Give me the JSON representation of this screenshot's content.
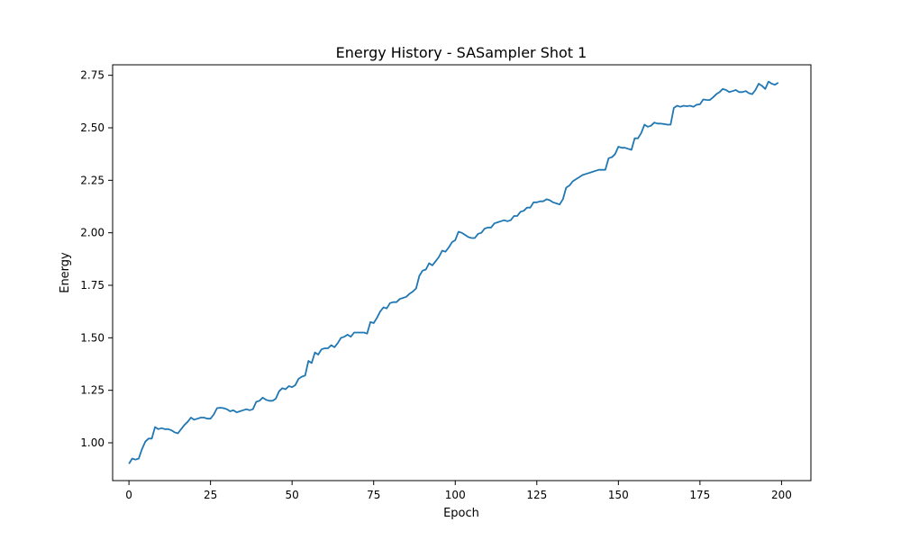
{
  "chart_data": {
    "type": "line",
    "title": "Energy History - SASampler Shot 1",
    "xlabel": "Epoch",
    "ylabel": "Energy",
    "xlim": [
      -5,
      209
    ],
    "ylim": [
      0.82,
      2.8
    ],
    "x_ticks": [
      0,
      25,
      50,
      75,
      100,
      125,
      150,
      175,
      200
    ],
    "y_ticks": [
      1.0,
      1.25,
      1.5,
      1.75,
      2.0,
      2.25,
      2.5,
      2.75
    ],
    "x_tick_labels": [
      "0",
      "25",
      "50",
      "75",
      "100",
      "125",
      "150",
      "175",
      "200"
    ],
    "y_tick_labels": [
      "1.00",
      "1.25",
      "1.50",
      "1.75",
      "2.00",
      "2.25",
      "2.50",
      "2.75"
    ],
    "grid": false,
    "line_color": "#1f77b4",
    "series": [
      {
        "x": [
          0,
          1,
          2,
          3,
          4,
          5,
          6,
          7,
          8,
          9,
          10,
          11,
          12,
          13,
          14,
          15,
          16,
          17,
          18,
          19,
          20,
          21,
          22,
          23,
          24,
          25,
          26,
          27,
          28,
          29,
          30,
          31,
          32,
          33,
          34,
          35,
          36,
          37,
          38,
          39,
          40,
          41,
          42,
          43,
          44,
          45,
          46,
          47,
          48,
          49,
          50,
          51,
          52,
          53,
          54,
          55,
          56,
          57,
          58,
          59,
          60,
          61,
          62,
          63,
          64,
          65,
          66,
          67,
          68,
          69,
          70,
          71,
          72,
          73,
          74,
          75,
          76,
          77,
          78,
          79,
          80,
          81,
          82,
          83,
          84,
          85,
          86,
          87,
          88,
          89,
          90,
          91,
          92,
          93,
          94,
          95,
          96,
          97,
          98,
          99,
          100,
          101,
          102,
          103,
          104,
          105,
          106,
          107,
          108,
          109,
          110,
          111,
          112,
          113,
          114,
          115,
          116,
          117,
          118,
          119,
          120,
          121,
          122,
          123,
          124,
          125,
          126,
          127,
          128,
          129,
          130,
          131,
          132,
          133,
          134,
          135,
          136,
          137,
          138,
          139,
          140,
          141,
          142,
          143,
          144,
          145,
          146,
          147,
          148,
          149,
          150,
          151,
          152,
          153,
          154,
          155,
          156,
          157,
          158,
          159,
          160,
          161,
          162,
          163,
          164,
          165,
          166,
          167,
          168,
          169,
          170,
          171,
          172,
          173,
          174,
          175,
          176,
          177,
          178,
          179,
          180,
          181,
          182,
          183,
          184,
          185,
          186,
          187,
          188,
          189,
          190,
          191,
          192,
          193,
          194,
          195,
          196,
          197,
          198,
          199
        ],
        "values": [
          0.9,
          0.925,
          0.92,
          0.925,
          0.97,
          1.005,
          1.02,
          1.02,
          1.075,
          1.065,
          1.07,
          1.065,
          1.065,
          1.06,
          1.05,
          1.045,
          1.065,
          1.085,
          1.1,
          1.12,
          1.11,
          1.115,
          1.12,
          1.12,
          1.115,
          1.115,
          1.135,
          1.165,
          1.167,
          1.165,
          1.16,
          1.15,
          1.155,
          1.145,
          1.15,
          1.155,
          1.16,
          1.155,
          1.16,
          1.195,
          1.2,
          1.215,
          1.205,
          1.2,
          1.2,
          1.21,
          1.245,
          1.26,
          1.255,
          1.27,
          1.265,
          1.275,
          1.305,
          1.315,
          1.32,
          1.39,
          1.38,
          1.43,
          1.42,
          1.445,
          1.45,
          1.45,
          1.465,
          1.455,
          1.475,
          1.5,
          1.505,
          1.515,
          1.505,
          1.525,
          1.525,
          1.525,
          1.525,
          1.52,
          1.575,
          1.57,
          1.595,
          1.625,
          1.645,
          1.64,
          1.665,
          1.67,
          1.67,
          1.685,
          1.69,
          1.695,
          1.71,
          1.72,
          1.735,
          1.795,
          1.82,
          1.825,
          1.855,
          1.845,
          1.865,
          1.885,
          1.915,
          1.91,
          1.93,
          1.955,
          1.965,
          2.005,
          2.0,
          1.99,
          1.98,
          1.975,
          1.975,
          1.995,
          2.0,
          2.02,
          2.025,
          2.025,
          2.045,
          2.05,
          2.055,
          2.06,
          2.055,
          2.06,
          2.08,
          2.08,
          2.1,
          2.105,
          2.12,
          2.12,
          2.145,
          2.145,
          2.15,
          2.15,
          2.16,
          2.155,
          2.145,
          2.14,
          2.135,
          2.16,
          2.215,
          2.225,
          2.245,
          2.255,
          2.265,
          2.275,
          2.28,
          2.285,
          2.29,
          2.295,
          2.3,
          2.3,
          2.3,
          2.355,
          2.36,
          2.375,
          2.41,
          2.405,
          2.405,
          2.4,
          2.395,
          2.45,
          2.45,
          2.475,
          2.515,
          2.505,
          2.51,
          2.525,
          2.52,
          2.52,
          2.518,
          2.515,
          2.515,
          2.595,
          2.605,
          2.6,
          2.605,
          2.603,
          2.605,
          2.6,
          2.61,
          2.612,
          2.635,
          2.633,
          2.632,
          2.645,
          2.66,
          2.67,
          2.685,
          2.68,
          2.67,
          2.675,
          2.68,
          2.67,
          2.67,
          2.675,
          2.665,
          2.66,
          2.68,
          2.71,
          2.7,
          2.685,
          2.72,
          2.71,
          2.705,
          2.715
        ]
      }
    ]
  }
}
